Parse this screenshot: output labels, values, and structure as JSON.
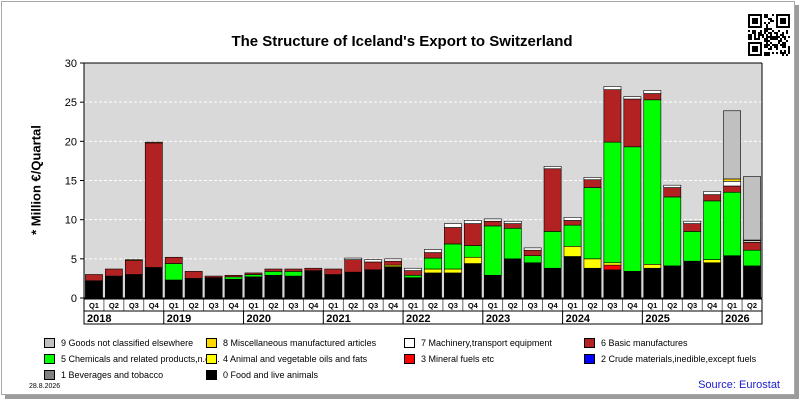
{
  "chart_data": {
    "type": "bar",
    "stacked": true,
    "title": "The Structure of Iceland's Export to Switzerland",
    "ylabel": "* Million €/Quartal",
    "ylim": [
      0,
      30
    ],
    "yticks": [
      "0",
      "5",
      "10",
      "15",
      "20",
      "25",
      "30"
    ],
    "grid": true,
    "legend_position": "bottom",
    "quarters": [
      "Q1",
      "Q2",
      "Q3",
      "Q4",
      "Q1",
      "Q2",
      "Q3",
      "Q4",
      "Q1",
      "Q2",
      "Q3",
      "Q4",
      "Q1",
      "Q2",
      "Q3",
      "Q4",
      "Q1",
      "Q2",
      "Q3",
      "Q4",
      "Q1",
      "Q2",
      "Q3",
      "Q4",
      "Q1",
      "Q2",
      "Q3",
      "Q4",
      "Q1",
      "Q2",
      "Q3",
      "Q4",
      "Q1",
      "Q2"
    ],
    "years": [
      {
        "label": "2018",
        "start": 0,
        "count": 4
      },
      {
        "label": "2019",
        "start": 4,
        "count": 4
      },
      {
        "label": "2020",
        "start": 8,
        "count": 4
      },
      {
        "label": "2021",
        "start": 12,
        "count": 4
      },
      {
        "label": "2022",
        "start": 16,
        "count": 4
      },
      {
        "label": "2023",
        "start": 20,
        "count": 4
      },
      {
        "label": "2024",
        "start": 24,
        "count": 4
      },
      {
        "label": "2025",
        "start": 28,
        "count": 4
      },
      {
        "label": "2026",
        "start": 32,
        "count": 2
      }
    ],
    "series": [
      {
        "name": "0 Food and live animals",
        "color": "#000000",
        "values": [
          2.2,
          2.8,
          3.0,
          3.9,
          2.3,
          2.5,
          2.6,
          2.4,
          2.7,
          2.9,
          2.8,
          3.5,
          3.0,
          3.3,
          3.6,
          4.0,
          2.6,
          3.2,
          3.2,
          4.4,
          2.9,
          5.0,
          4.5,
          3.8,
          5.3,
          3.8,
          3.6,
          3.4,
          3.8,
          4.1,
          4.7,
          4.5,
          5.4,
          4.1
        ]
      },
      {
        "name": "1 Beverages and tobacco",
        "color": "#808080",
        "values": [
          0,
          0,
          0,
          0,
          0,
          0,
          0,
          0,
          0,
          0,
          0,
          0,
          0,
          0,
          0,
          0,
          0,
          0,
          0,
          0,
          0,
          0,
          0,
          0,
          0,
          0,
          0,
          0,
          0,
          0,
          0,
          0,
          0,
          0
        ]
      },
      {
        "name": "2 Crude materials,inedible,except fuels",
        "color": "#0000ff",
        "values": [
          0,
          0,
          0,
          0,
          0,
          0,
          0,
          0,
          0,
          0,
          0,
          0,
          0,
          0,
          0,
          0,
          0,
          0,
          0,
          0,
          0,
          0,
          0,
          0,
          0,
          0,
          0,
          0,
          0,
          0,
          0,
          0,
          0,
          0
        ]
      },
      {
        "name": "3 Mineral fuels etc",
        "color": "#ff0000",
        "values": [
          0,
          0,
          0,
          0,
          0,
          0,
          0,
          0,
          0,
          0,
          0,
          0,
          0,
          0,
          0,
          0,
          0,
          0,
          0,
          0,
          0,
          0,
          0,
          0,
          0,
          0,
          0.6,
          0,
          0,
          0,
          0,
          0,
          0,
          0
        ]
      },
      {
        "name": "4 Animal and vegetable oils and fats",
        "color": "#ffff00",
        "values": [
          0,
          0,
          0,
          0,
          0,
          0,
          0,
          0,
          0,
          0,
          0,
          0,
          0,
          0,
          0,
          0.2,
          0,
          0.5,
          0.5,
          0.8,
          0,
          0,
          0,
          0,
          1.3,
          1.2,
          0.3,
          0,
          0.5,
          0,
          0,
          0.4,
          0,
          0
        ]
      },
      {
        "name": "5 Chemicals and related products,n.e.s.",
        "color": "#00ff00",
        "values": [
          0,
          0,
          0,
          0,
          2.1,
          0,
          0,
          0.3,
          0.3,
          0.5,
          0.6,
          0,
          0,
          0,
          0,
          0,
          0.3,
          1.4,
          3.2,
          1.5,
          6.3,
          3.9,
          0.9,
          4.7,
          2.7,
          9.1,
          15.4,
          15.9,
          21.0,
          8.8,
          3.8,
          7.5,
          8.1,
          2.0
        ]
      },
      {
        "name": "6 Basic manufactures",
        "color": "#b22222",
        "values": [
          0.8,
          0.9,
          1.8,
          15.9,
          0.8,
          0.9,
          0.2,
          0.2,
          0.2,
          0.3,
          0.3,
          0.3,
          0.7,
          1.6,
          1.0,
          0.5,
          0.6,
          0.7,
          2.1,
          2.8,
          0.6,
          0.6,
          0.7,
          8.0,
          0.6,
          1.0,
          6.7,
          6.1,
          0.8,
          1.2,
          1.0,
          0.8,
          0.8,
          1.0
        ]
      },
      {
        "name": "7 Machinery,transport equipment",
        "color": "#ffffff",
        "values": [
          0,
          0,
          0,
          0,
          0,
          0,
          0,
          0,
          0,
          0,
          0,
          0,
          0,
          0.2,
          0.3,
          0.3,
          0.3,
          0.4,
          0.5,
          0.4,
          0.3,
          0.3,
          0.3,
          0.3,
          0.4,
          0.3,
          0.4,
          0.3,
          0.4,
          0.3,
          0.3,
          0.4,
          0.6,
          0.2
        ]
      },
      {
        "name": "8 Miscellaneous manufactured articles",
        "color": "#ffd700",
        "values": [
          0,
          0,
          0.1,
          0.1,
          0,
          0,
          0,
          0,
          0,
          0,
          0,
          0,
          0,
          0,
          0,
          0,
          0,
          0,
          0,
          0,
          0,
          0,
          0,
          0,
          0,
          0,
          0,
          0,
          0,
          0,
          0,
          0,
          0.3,
          0.1
        ]
      },
      {
        "name": "9 Goods not classified elsewhere",
        "color": "#c0c0c0",
        "values": [
          0,
          0,
          0,
          0,
          0,
          0,
          0,
          0,
          0,
          0,
          0,
          0,
          0,
          0,
          0,
          0,
          0,
          0,
          0,
          0,
          0,
          0,
          0,
          0,
          0,
          0,
          0,
          0,
          0,
          0,
          0,
          0,
          8.7,
          8.1
        ]
      }
    ],
    "legend_order": [
      9,
      8,
      7,
      6,
      5,
      4,
      3,
      2,
      1,
      0
    ]
  },
  "footer": {
    "date": "28.8.2026",
    "source": "Source: Eurostat"
  }
}
